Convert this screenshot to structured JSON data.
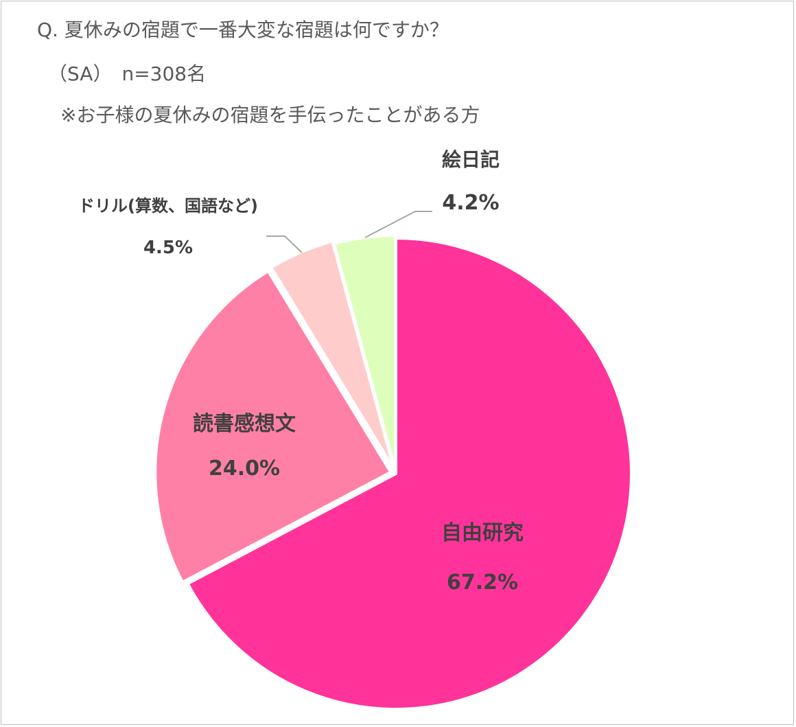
{
  "question": {
    "line1": "Q. 夏休みの宿題で一番大変な宿題は何ですか？",
    "line2": "（SA）　n=308名",
    "line3": "※お子様の夏休みの宿題を手伝ったことがある方"
  },
  "chart_data": {
    "type": "pie",
    "categories": [
      "自由研究",
      "読書感想文",
      "ドリル(算数、国語など)",
      "絵日記"
    ],
    "values": [
      67.2,
      24.0,
      4.5,
      4.2
    ],
    "value_labels": [
      "67.2%",
      "24.0%",
      "4.5%",
      "4.2%"
    ],
    "colors": [
      "#ff3399",
      "#ff80a6",
      "#ffcccc",
      "#ddffbb"
    ],
    "start": "12 o'clock, clockwise",
    "exploded": true
  }
}
